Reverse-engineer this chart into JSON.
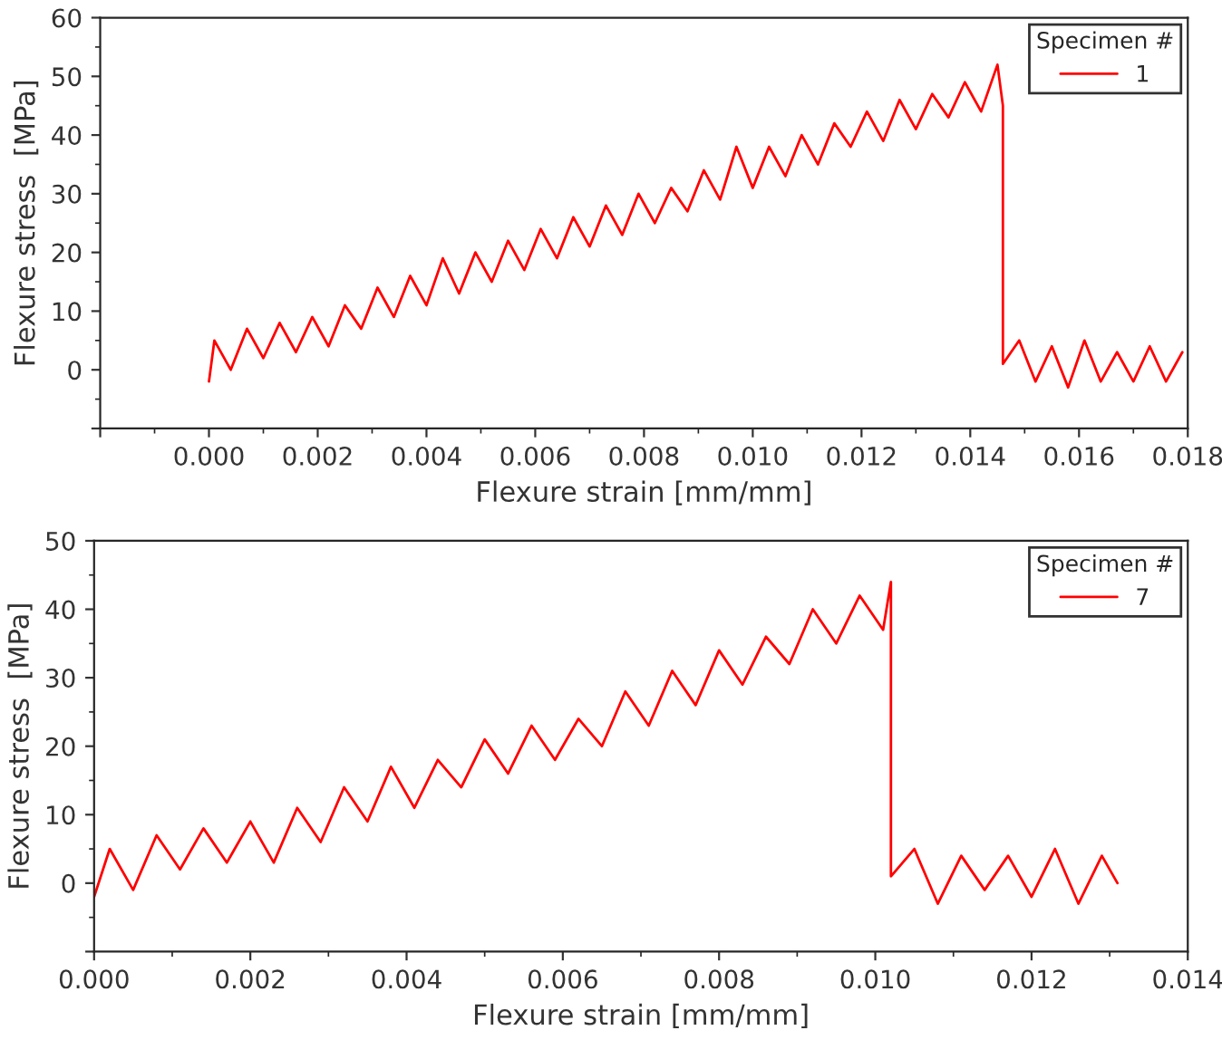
{
  "chart_data": [
    {
      "type": "line",
      "xlabel": "Flexure strain [mm/mm]",
      "ylabel": "Flexure stress  [MPa]",
      "legend_title": "Specimen #",
      "legend": "top right",
      "grid": false,
      "marker": "none",
      "line_style": "solid",
      "xlim": [
        -0.002,
        0.018
      ],
      "xticks": [
        {
          "value": -0.002,
          "label": null
        },
        {
          "value": 0,
          "label": "0.000"
        },
        {
          "value": 0.002,
          "label": "0.002"
        },
        {
          "value": 0.004,
          "label": "0.004"
        },
        {
          "value": 0.006,
          "label": "0.006"
        },
        {
          "value": 0.008,
          "label": "0.008"
        },
        {
          "value": 0.01,
          "label": "0.010"
        },
        {
          "value": 0.012,
          "label": "0.012"
        },
        {
          "value": 0.014,
          "label": "0.014"
        },
        {
          "value": 0.016,
          "label": "0.016"
        },
        {
          "value": 0.018,
          "label": "0.018"
        }
      ],
      "ylim": [
        -10,
        60
      ],
      "yticks": [
        {
          "value": -10,
          "label": null
        },
        0,
        10,
        20,
        30,
        40,
        50,
        60
      ],
      "series": [
        {
          "name": "1",
          "color": "#ff0000",
          "x": [
            0,
            0.0001,
            0.0004,
            0.0007,
            0.001,
            0.0013,
            0.0016,
            0.0019,
            0.0022,
            0.0025,
            0.0028,
            0.0031,
            0.0034,
            0.0037,
            0.004,
            0.0043,
            0.0046,
            0.0049,
            0.0052,
            0.0055,
            0.0058,
            0.0061,
            0.0064,
            0.0067,
            0.007,
            0.0073,
            0.0076,
            0.0079,
            0.0082,
            0.0085,
            0.0088,
            0.0091,
            0.0094,
            0.0097,
            0.01,
            0.0103,
            0.0106,
            0.0109,
            0.0112,
            0.0115,
            0.0118,
            0.0121,
            0.0124,
            0.0127,
            0.013,
            0.0133,
            0.0136,
            0.0139,
            0.0142,
            0.0145,
            0.0146,
            0.0146,
            0.0149,
            0.0152,
            0.0155,
            0.0158,
            0.0161,
            0.0164,
            0.0167,
            0.017,
            0.0173,
            0.0176,
            0.0179
          ],
          "values": [
            -2,
            5,
            0,
            7,
            2,
            8,
            3,
            9,
            4,
            11,
            7,
            14,
            9,
            16,
            11,
            19,
            13,
            20,
            15,
            22,
            17,
            24,
            19,
            26,
            21,
            28,
            23,
            30,
            25,
            31,
            27,
            34,
            29,
            38,
            31,
            38,
            33,
            40,
            35,
            42,
            38,
            44,
            39,
            46,
            41,
            47,
            43,
            49,
            44,
            52,
            45,
            1,
            5,
            -2,
            4,
            -3,
            5,
            -2,
            3,
            -2,
            4,
            -2,
            3
          ]
        }
      ]
    },
    {
      "type": "line",
      "xlabel": "Flexure strain [mm/mm]",
      "ylabel": "Flexure stress  [MPa]",
      "legend_title": "Specimen #",
      "legend": "top right",
      "grid": false,
      "marker": "none",
      "line_style": "solid",
      "xlim": [
        0,
        0.014
      ],
      "xticks": [
        {
          "value": 0,
          "label": "0.000"
        },
        {
          "value": 0.002,
          "label": "0.002"
        },
        {
          "value": 0.004,
          "label": "0.004"
        },
        {
          "value": 0.006,
          "label": "0.006"
        },
        {
          "value": 0.008,
          "label": "0.008"
        },
        {
          "value": 0.01,
          "label": "0.010"
        },
        {
          "value": 0.012,
          "label": "0.012"
        },
        {
          "value": 0.014,
          "label": "0.014"
        }
      ],
      "ylim": [
        -10,
        50
      ],
      "yticks": [
        {
          "value": -10,
          "label": null
        },
        0,
        10,
        20,
        30,
        40,
        50
      ],
      "series": [
        {
          "name": "7",
          "color": "#ff0000",
          "x": [
            0,
            0.0002,
            0.0005,
            0.0008,
            0.0011,
            0.0014,
            0.0017,
            0.002,
            0.0023,
            0.0026,
            0.0029,
            0.0032,
            0.0035,
            0.0038,
            0.0041,
            0.0044,
            0.0047,
            0.005,
            0.0053,
            0.0056,
            0.0059,
            0.0062,
            0.0065,
            0.0068,
            0.0071,
            0.0074,
            0.0077,
            0.008,
            0.0083,
            0.0086,
            0.0089,
            0.0092,
            0.0095,
            0.0098,
            0.0101,
            0.0102,
            0.0102,
            0.0105,
            0.0108,
            0.0111,
            0.0114,
            0.0117,
            0.012,
            0.0123,
            0.0126,
            0.0129,
            0.0131
          ],
          "values": [
            -2,
            5,
            -1,
            7,
            2,
            8,
            3,
            9,
            3,
            11,
            6,
            14,
            9,
            17,
            11,
            18,
            14,
            21,
            16,
            23,
            18,
            24,
            20,
            28,
            23,
            31,
            26,
            34,
            29,
            36,
            32,
            40,
            35,
            42,
            37,
            44,
            1,
            5,
            -3,
            4,
            -1,
            4,
            -2,
            5,
            -3,
            4,
            0
          ]
        }
      ]
    }
  ]
}
